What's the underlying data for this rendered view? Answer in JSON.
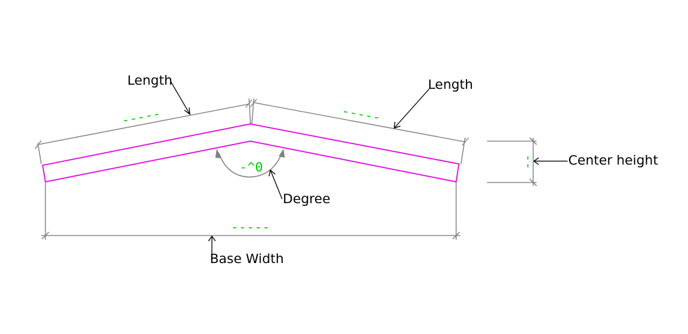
{
  "labels": {
    "length_left": "Length",
    "length_right": "Length",
    "center_height": "Center height",
    "degree": "Degree",
    "base_width": "Base Width"
  },
  "values": {
    "length_left": "-----",
    "length_right": "-----",
    "base_width": "-----",
    "degree": "-^0",
    "center_height": "--"
  },
  "colors": {
    "profile": "#e000e0",
    "dimension": "#808080",
    "value": "#00d000",
    "leader": "#000000"
  }
}
